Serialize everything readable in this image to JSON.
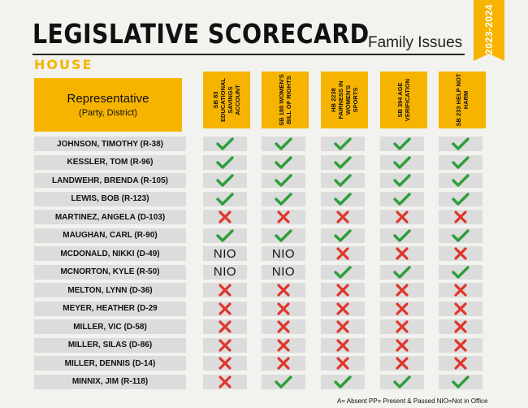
{
  "header": {
    "title": "LEGISLATIVE SCORECARD",
    "subtitle": "Family Issues",
    "session": "2023-2024",
    "chamber": "HOUSE"
  },
  "columns": {
    "representative": "Representative",
    "party_district": "(Party, District)",
    "bills": [
      "SB 83 EDUCATIONAL SAVINGS ACCOUNT",
      "SB 180 WOMEN'S BILL OF RIGHTS",
      "HB 2238 FAIRNESS IN WOMEN'S SPORTS",
      "SB 394 AGE VERIFICATION",
      "SB 233 HELP NOT HARM"
    ]
  },
  "rows": [
    {
      "name": "JOHNSON, TIMOTHY (R-38)",
      "votes": [
        "check",
        "check",
        "check",
        "check",
        "check"
      ]
    },
    {
      "name": "KESSLER, TOM (R-96)",
      "votes": [
        "check",
        "check",
        "check",
        "check",
        "check"
      ]
    },
    {
      "name": "LANDWEHR, BRENDA (R-105)",
      "votes": [
        "check",
        "check",
        "check",
        "check",
        "check"
      ]
    },
    {
      "name": "LEWIS, BOB (R-123)",
      "votes": [
        "check",
        "check",
        "check",
        "check",
        "check"
      ]
    },
    {
      "name": "MARTINEZ, ANGELA (D-103)",
      "votes": [
        "x",
        "x",
        "x",
        "x",
        "x"
      ]
    },
    {
      "name": "MAUGHAN, CARL (R-90)",
      "votes": [
        "check",
        "check",
        "check",
        "check",
        "check"
      ]
    },
    {
      "name": "MCDONALD, NIKKI (D-49)",
      "votes": [
        "NIO",
        "NIO",
        "x",
        "x",
        "x"
      ]
    },
    {
      "name": "MCNORTON, KYLE (R-50)",
      "votes": [
        "NIO",
        "NIO",
        "check",
        "check",
        "check"
      ]
    },
    {
      "name": "MELTON, LYNN (D-36)",
      "votes": [
        "x",
        "x",
        "x",
        "x",
        "x"
      ]
    },
    {
      "name": "MEYER, HEATHER (D-29",
      "votes": [
        "x",
        "x",
        "x",
        "x",
        "x"
      ]
    },
    {
      "name": "MILLER, VIC (D-58)",
      "votes": [
        "x",
        "x",
        "x",
        "x",
        "x"
      ]
    },
    {
      "name": "MILLER, SILAS (D-86)",
      "votes": [
        "x",
        "x",
        "x",
        "x",
        "x"
      ]
    },
    {
      "name": "MILLER, DENNIS (D-14)",
      "votes": [
        "x",
        "x",
        "x",
        "x",
        "x"
      ]
    },
    {
      "name": "MINNIX, JIM (R-118)",
      "votes": [
        "x",
        "check",
        "check",
        "check",
        "check"
      ]
    }
  ],
  "footer": "A= Absent PP= Present & Passed NIO=Not in Office",
  "colors": {
    "accent": "#f6b400",
    "check": "#2e9e3a",
    "x": "#e0352b",
    "row_bg": "#dcdcdc",
    "page_bg": "#f2f2ee"
  }
}
